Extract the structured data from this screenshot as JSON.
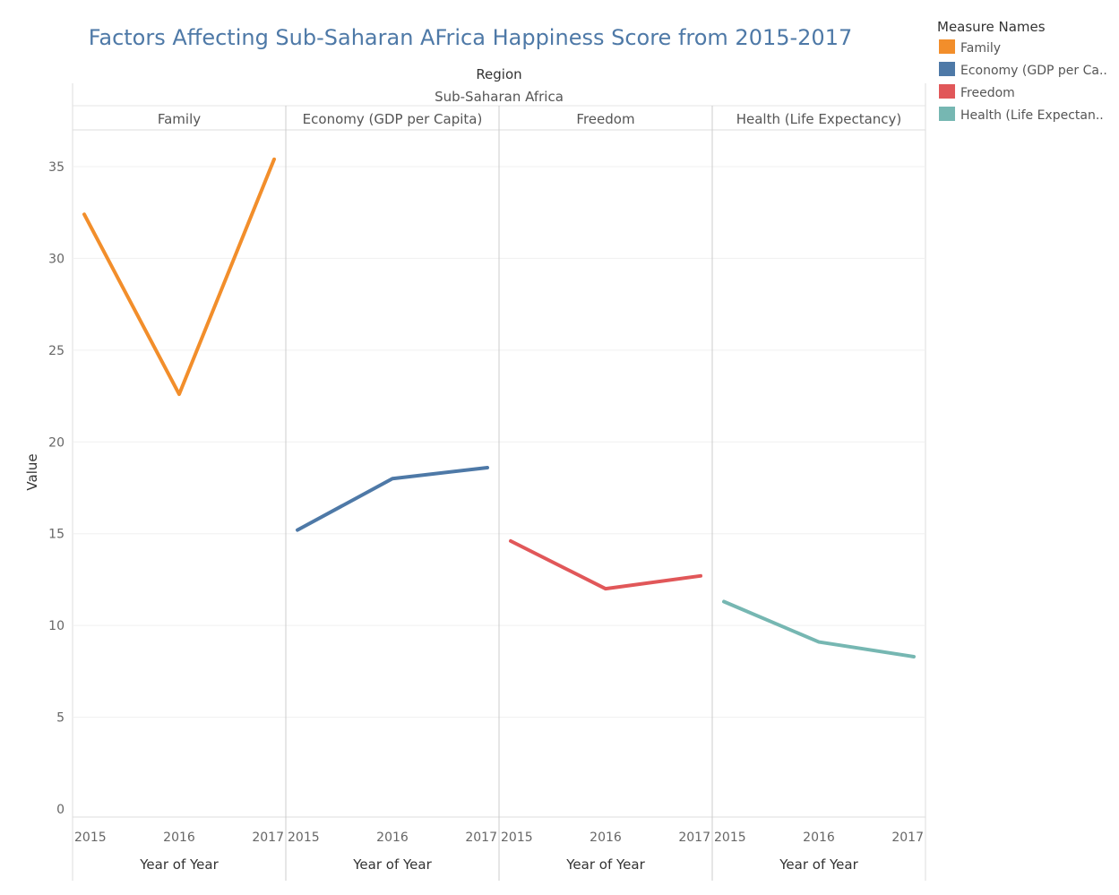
{
  "chart_data": {
    "type": "line",
    "title": "Factors Affecting Sub-Saharan AFrica Happiness Score from 2015-2017",
    "header": "Region",
    "region": "Sub-Saharan Africa",
    "ylabel": "Value",
    "xlabel": "Year of Year",
    "ylim": [
      0,
      37
    ],
    "yticks": [
      0,
      5,
      10,
      15,
      20,
      25,
      30,
      35
    ],
    "x": [
      "2015",
      "2016",
      "2017"
    ],
    "grid": true,
    "legend": {
      "title": "Measure Names",
      "position": "top-right",
      "entries": [
        "Family",
        "Economy (GDP per Ca..",
        "Freedom",
        "Health (Life Expectan.."
      ]
    },
    "series": [
      {
        "name": "Family",
        "panel_label": "Family",
        "color": "#f28e2b",
        "values": [
          32.4,
          22.6,
          35.4
        ]
      },
      {
        "name": "Economy (GDP per Capita)",
        "panel_label": "Economy (GDP per Capita)",
        "color": "#4e79a7",
        "values": [
          15.2,
          18.0,
          18.6
        ]
      },
      {
        "name": "Freedom",
        "panel_label": "Freedom",
        "color": "#e15759",
        "values": [
          14.6,
          12.0,
          12.7
        ]
      },
      {
        "name": "Health (Life Expectancy)",
        "panel_label": "Health (Life Expectancy)",
        "color": "#76b7b2",
        "values": [
          11.3,
          9.1,
          8.3
        ]
      }
    ]
  }
}
